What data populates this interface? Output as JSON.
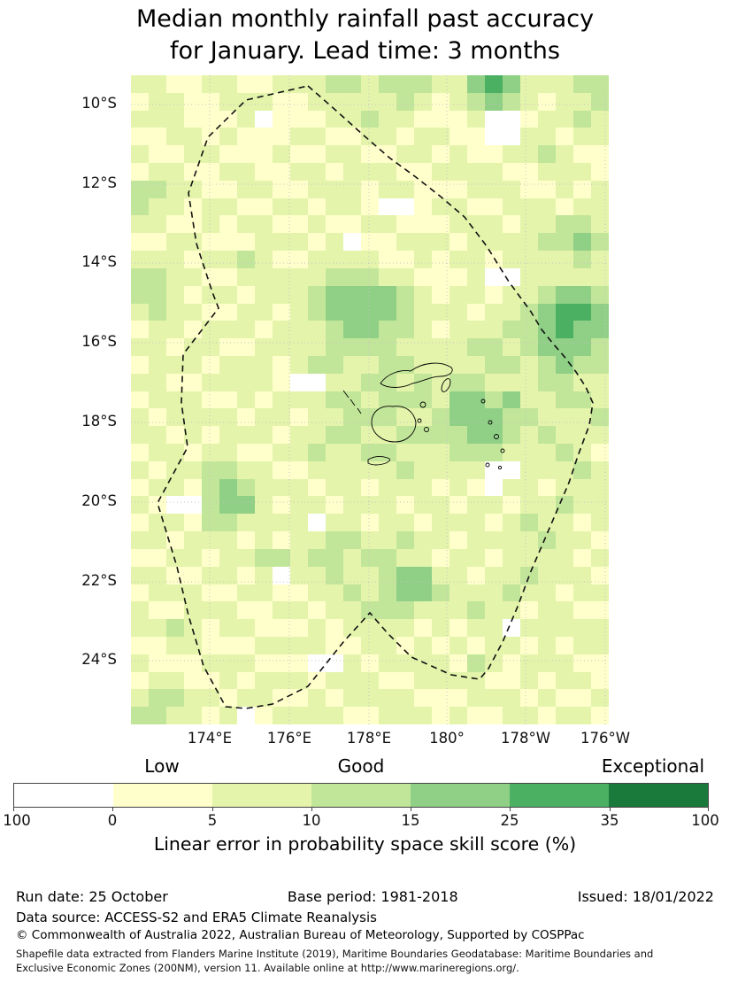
{
  "title": {
    "line1": "Median monthly rainfall past accuracy",
    "line2": "for January. Lead time: 3 months"
  },
  "map": {
    "y_ticks": [
      "10°S",
      "12°S",
      "14°S",
      "16°S",
      "18°S",
      "20°S",
      "22°S",
      "24°S"
    ],
    "x_ticks": [
      "174°E",
      "176°E",
      "178°E",
      "180°",
      "178°W",
      "176°W"
    ]
  },
  "colorbar": {
    "labels": [
      "Low",
      "Good",
      "Exceptional"
    ],
    "ticks": [
      "100",
      "0",
      "5",
      "10",
      "15",
      "25",
      "35",
      "100"
    ],
    "caption": "Linear error in probability space skill score (%)"
  },
  "footer": {
    "run_date": "Run date: 25 October",
    "base_period": "Base period: 1981-2018",
    "issued": "Issued: 18/01/2022",
    "data_source": "Data source: ACCESS-S2 and ERA5 Climate Reanalysis",
    "copyright": "© Commonwealth of Australia 2022, Australian Bureau of Meteorology, Supported by COSPPac",
    "shapefile_line1": "Shapefile data extracted from Flanders Marine Institute (2019), Maritime Boundaries Geodatabase: Maritime Boundaries and",
    "shapefile_line2": "Exclusive Economic Zones (200NM), version 11. Available online at http://www.marineregions.org/."
  },
  "chart_data": {
    "type": "heatmap",
    "title": "Median monthly rainfall past accuracy for January. Lead time: 3 months",
    "caption": "Linear error in probability space skill score (%)",
    "x_tick_labels": [
      "174°E",
      "176°E",
      "178°E",
      "180°",
      "178°W",
      "176°W"
    ],
    "y_tick_labels": [
      "10°S",
      "12°S",
      "14°S",
      "16°S",
      "18°S",
      "20°S",
      "22°S",
      "24°S"
    ],
    "lon_range_deg_east": [
      172.0,
      184.2
    ],
    "lat_range_deg_south": [
      9.3,
      25.6
    ],
    "grid_cols": 27,
    "grid_rows_count": 37,
    "legend_labels": [
      "Low",
      "Good",
      "Exceptional"
    ],
    "colorbar_tick_values": [
      100,
      0,
      5,
      10,
      15,
      25,
      35,
      100
    ],
    "bins": [
      {
        "range": "< 0",
        "color": "#ffffff"
      },
      {
        "range": "0-5",
        "color": "#ffffcc"
      },
      {
        "range": "5-10",
        "color": "#e4f4ab"
      },
      {
        "range": "10-15",
        "color": "#c2e699"
      },
      {
        "range": "15-25",
        "color": "#8fd086"
      },
      {
        "range": "25-35",
        "color": "#4bb062"
      },
      {
        "range": "35-100",
        "color": "#1a7a3c"
      }
    ],
    "grid_rows": [
      "221122112223323332245422233",
      "122112221122222321234321223",
      "222111201112232211120012232",
      "112212111221122122110022122",
      "211221112112211221211223211",
      "122112211221222112222112221",
      "332211221122212211122211212",
      "322122112212210012211222122",
      "221121221121122111222122332",
      "112211122212011222122223343",
      "222122321122221121221222232",
      "332211222223332211120022222",
      "332122122234444321221223443",
      "232211221234444322212234554",
      "122122212223443321222334544",
      "221221122223333222233234443",
      "122212221233223322223323433",
      "221122221002233232332223322",
      "122211212223323332443422332",
      "212222122122333223444332223",
      "221212221223322333344323222",
      "122122112232233222333222321",
      "212233221122222322220022232",
      "122134322212212221210221222",
      "210034421221222122122122322",
      "122133222202212212221232212",
      "221222121223322322122223221",
      "112212233233233221221222212",
      "221122120223223442212232221",
      "122211221122323443222322122",
      "211222112212233322232212211",
      "223212211121222212122022222",
      "112211122221122121212212122",
      "211122211100212222132122211",
      "122112122212221122221121221",
      "233221221121222211122212112",
      "332212012222112221211221221"
    ]
  }
}
